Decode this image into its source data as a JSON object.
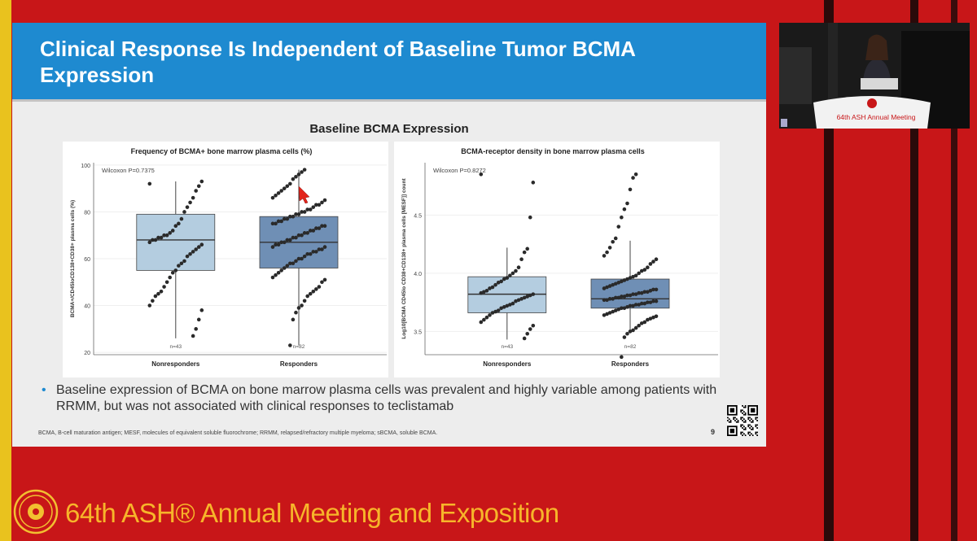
{
  "slide": {
    "title": "Clinical Response Is Independent of Baseline Tumor BCMA Expression",
    "section_title": "Baseline BCMA Expression",
    "bullet": "Baseline expression of BCMA on bone marrow plasma cells was prevalent and highly variable among patients with RRMM, but was not associated with clinical responses to teclistamab",
    "footnote": "BCMA, B-cell maturation antigen; MESF, molecules of equivalent soluble fluorochrome; RRMM, relapsed/refractory multiple myeloma; sBCMA, soluble BCMA.",
    "page_number": "9"
  },
  "camera": {
    "podium_label": "64th ASH Annual Meeting"
  },
  "footer": {
    "text": "64th ASH® Annual Meeting and Exposition"
  },
  "colors": {
    "header": "#1e8ad0",
    "box_nonresponders": "#b4cde0",
    "box_responders": "#6f8fb5",
    "footer_text": "#f7b52a",
    "background": "#c81618"
  },
  "chart_data": [
    {
      "type": "box",
      "title": "Frequency of BCMA+ bone marrow plasma cells (%)",
      "ylabel": "BCMA+/CD45loCD138+CD38+ plasma cells (%)",
      "xlabel": "",
      "annotation": "Wilcoxon P=0.7375",
      "ylim": [
        19,
        101
      ],
      "yticks": [
        "20",
        "40",
        "60",
        "80",
        "100"
      ],
      "categories": [
        "Nonresponders",
        "Responders"
      ],
      "n_labels": [
        "n=43",
        "n=82"
      ],
      "boxes": [
        {
          "q1": 55,
          "median": 68,
          "q3": 79,
          "whisker_low": 26,
          "whisker_high": 93
        },
        {
          "q1": 56,
          "median": 67,
          "q3": 78,
          "whisker_low": 23,
          "whisker_high": 98
        }
      ],
      "points": [
        [
          92,
          93,
          91,
          89,
          86,
          84,
          82,
          80,
          77,
          75,
          74,
          72,
          71,
          70,
          70,
          69,
          69,
          68,
          68,
          67,
          66,
          65,
          64,
          63,
          62,
          61,
          59,
          58,
          57,
          55,
          54,
          52,
          50,
          48,
          46,
          45,
          44,
          42,
          40,
          38,
          34,
          30,
          27
        ],
        [
          98,
          97,
          96,
          95,
          94,
          92,
          91,
          90,
          89,
          88,
          87,
          86,
          85,
          84,
          83,
          83,
          82,
          81,
          81,
          80,
          80,
          79,
          79,
          78,
          78,
          77,
          77,
          76,
          76,
          75,
          75,
          74,
          74,
          73,
          73,
          72,
          72,
          71,
          71,
          70,
          70,
          69,
          69,
          68,
          68,
          67,
          67,
          66,
          66,
          65,
          65,
          64,
          64,
          63,
          63,
          62,
          62,
          61,
          60,
          60,
          59,
          58,
          58,
          57,
          56,
          55,
          54,
          53,
          52,
          51,
          50,
          48,
          47,
          46,
          45,
          44,
          42,
          40,
          39,
          37,
          34,
          23
        ]
      ]
    },
    {
      "type": "box",
      "title": "BCMA-receptor density in bone marrow plasma cells",
      "ylabel": "Log10[BCMA CD45lo CD38+CD138+ plasma cells [MESF]] count",
      "xlabel": "",
      "annotation": "Wilcoxon P=0.8272",
      "ylim": [
        3.3,
        4.95
      ],
      "yticks": [
        "3.5",
        "4.0",
        "4.5"
      ],
      "categories": [
        "Nonresponders",
        "Responders"
      ],
      "n_labels": [
        "n=43",
        "n=82"
      ],
      "boxes": [
        {
          "q1": 3.66,
          "median": 3.82,
          "q3": 3.97,
          "whisker_low": 3.43,
          "whisker_high": 4.22
        },
        {
          "q1": 3.7,
          "median": 3.78,
          "q3": 3.95,
          "whisker_low": 3.5,
          "whisker_high": 4.28
        }
      ],
      "points": [
        [
          4.85,
          4.78,
          4.48,
          4.21,
          4.18,
          4.12,
          4.05,
          4.02,
          4.0,
          3.98,
          3.96,
          3.95,
          3.93,
          3.92,
          3.9,
          3.88,
          3.87,
          3.85,
          3.84,
          3.83,
          3.82,
          3.81,
          3.8,
          3.79,
          3.78,
          3.77,
          3.76,
          3.74,
          3.73,
          3.72,
          3.71,
          3.7,
          3.68,
          3.67,
          3.66,
          3.64,
          3.62,
          3.6,
          3.58,
          3.55,
          3.52,
          3.48,
          3.44
        ],
        [
          4.85,
          4.82,
          4.72,
          4.6,
          4.55,
          4.48,
          4.4,
          4.3,
          4.27,
          4.22,
          4.18,
          4.15,
          4.12,
          4.1,
          4.08,
          4.05,
          4.03,
          4.02,
          4.0,
          3.98,
          3.97,
          3.96,
          3.95,
          3.94,
          3.93,
          3.92,
          3.91,
          3.9,
          3.89,
          3.88,
          3.87,
          3.86,
          3.86,
          3.85,
          3.84,
          3.84,
          3.83,
          3.83,
          3.82,
          3.82,
          3.81,
          3.81,
          3.8,
          3.8,
          3.79,
          3.79,
          3.78,
          3.78,
          3.77,
          3.77,
          3.76,
          3.76,
          3.75,
          3.75,
          3.74,
          3.74,
          3.73,
          3.73,
          3.72,
          3.72,
          3.71,
          3.7,
          3.7,
          3.69,
          3.68,
          3.67,
          3.66,
          3.65,
          3.64,
          3.63,
          3.62,
          3.61,
          3.6,
          3.58,
          3.57,
          3.55,
          3.53,
          3.51,
          3.5,
          3.48,
          3.45,
          3.28
        ]
      ]
    }
  ]
}
